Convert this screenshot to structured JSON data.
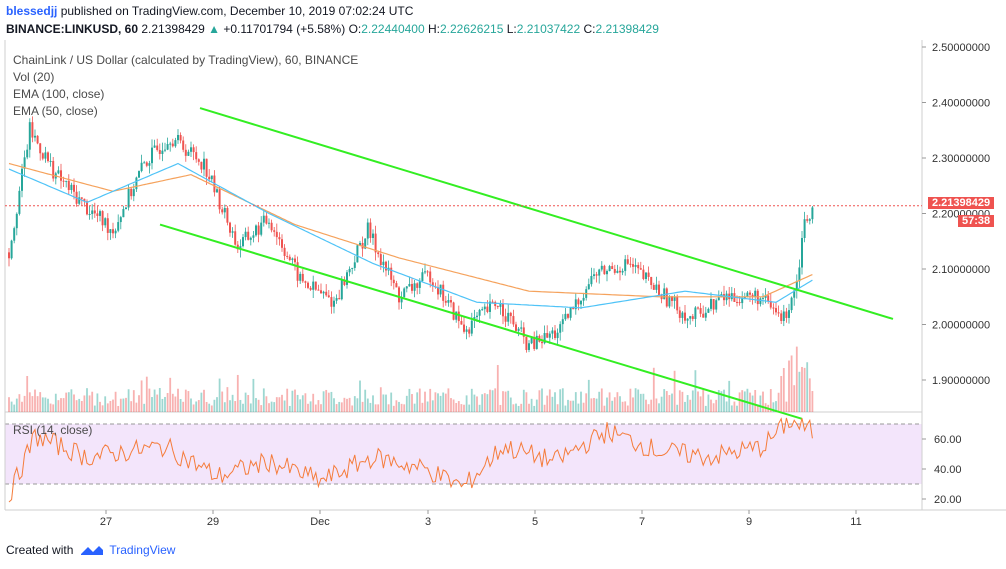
{
  "header": {
    "author": "blessedjj",
    "published": "published on TradingView.com, December 10, 2019 07:02:24 UTC",
    "symbol": "BINANCE:LINKUSD, 60",
    "last": "2.21398429",
    "change": "+0.11701794 (+5.58%)",
    "open_label": "O:",
    "open": "2.22440400",
    "high_label": "H:",
    "high": "2.22626215",
    "low_label": "L:",
    "low": "2.21037422",
    "close_label": "C:",
    "close": "2.21398429"
  },
  "legend": {
    "title": "ChainLink / US Dollar (calculated by TradingView), 60, BINANCE",
    "vol": "Vol (20)",
    "ema100": "EMA (100, close)",
    "ema50": "EMA (50, close)",
    "rsi": "RSI (14, close)"
  },
  "price_tag": {
    "price": "2.21398429",
    "countdown": "57:38"
  },
  "footer": {
    "created_with": "Created with",
    "brand": "TradingView"
  },
  "colors": {
    "up": "#26a69a",
    "down": "#ef5350",
    "channel": "#33ee22",
    "ema100": "#f5a25c",
    "ema50": "#4fc3f7",
    "rsi": "#f57c3b",
    "rsi_band": "#f3e5fb",
    "price_line": "#ef5350"
  },
  "chart_data": {
    "type": "candlestick",
    "title": "ChainLink / US Dollar (calculated by TradingView), 60, BINANCE",
    "y_ticks": [
      "2.50000000",
      "2.40000000",
      "2.30000000",
      "2.20000000",
      "2.10000000",
      "2.00000000",
      "1.90000000"
    ],
    "y_tick_values": [
      2.5,
      2.4,
      2.3,
      2.2,
      2.1,
      2.0,
      1.9
    ],
    "x_ticks": [
      "27",
      "29",
      "Dec",
      "3",
      "5",
      "7",
      "9",
      "11"
    ],
    "rsi_ticks": [
      "60.00",
      "40.00",
      "20.00"
    ],
    "rsi_tick_values": [
      60,
      40,
      20
    ],
    "rsi_band": [
      70,
      30
    ],
    "last_price": 2.21398429,
    "channel_lines": [
      {
        "name": "upper",
        "points": [
          [
            "Nov 28 12:00",
            2.39
          ],
          [
            "Dec 11 06:00",
            2.01
          ]
        ]
      },
      {
        "name": "lower",
        "points": [
          [
            "Nov 27 18:00",
            2.18
          ],
          [
            "Dec 9 20:00",
            1.83
          ]
        ]
      }
    ],
    "close_waypoints": [
      [
        0,
        2.13
      ],
      [
        8,
        2.35
      ],
      [
        18,
        2.27
      ],
      [
        30,
        2.21
      ],
      [
        40,
        2.17
      ],
      [
        52,
        2.29
      ],
      [
        62,
        2.34
      ],
      [
        75,
        2.29
      ],
      [
        88,
        2.14
      ],
      [
        100,
        2.19
      ],
      [
        112,
        2.08
      ],
      [
        125,
        2.04
      ],
      [
        138,
        2.17
      ],
      [
        150,
        2.05
      ],
      [
        162,
        2.09
      ],
      [
        175,
        1.99
      ],
      [
        188,
        2.04
      ],
      [
        200,
        1.96
      ],
      [
        212,
        1.99
      ],
      [
        225,
        2.09
      ],
      [
        238,
        2.11
      ],
      [
        250,
        2.06
      ],
      [
        262,
        2.01
      ],
      [
        275,
        2.05
      ],
      [
        288,
        2.05
      ],
      [
        298,
        2.01
      ],
      [
        303,
        2.08
      ],
      [
        306,
        2.19
      ],
      [
        309,
        2.21
      ]
    ],
    "ema100_waypoints": [
      [
        0,
        2.29
      ],
      [
        40,
        2.24
      ],
      [
        70,
        2.27
      ],
      [
        110,
        2.18
      ],
      [
        150,
        2.12
      ],
      [
        200,
        2.06
      ],
      [
        250,
        2.05
      ],
      [
        290,
        2.05
      ],
      [
        309,
        2.09
      ]
    ],
    "ema50_waypoints": [
      [
        0,
        2.28
      ],
      [
        30,
        2.22
      ],
      [
        65,
        2.29
      ],
      [
        100,
        2.2
      ],
      [
        140,
        2.11
      ],
      [
        180,
        2.04
      ],
      [
        220,
        2.03
      ],
      [
        260,
        2.06
      ],
      [
        295,
        2.04
      ],
      [
        309,
        2.08
      ]
    ],
    "rsi_waypoints": [
      [
        0,
        22
      ],
      [
        10,
        62
      ],
      [
        30,
        48
      ],
      [
        60,
        55
      ],
      [
        80,
        35
      ],
      [
        100,
        45
      ],
      [
        120,
        32
      ],
      [
        140,
        48
      ],
      [
        160,
        40
      ],
      [
        175,
        28
      ],
      [
        190,
        55
      ],
      [
        210,
        45
      ],
      [
        230,
        65
      ],
      [
        250,
        52
      ],
      [
        270,
        48
      ],
      [
        290,
        55
      ],
      [
        300,
        72
      ],
      [
        309,
        65
      ]
    ]
  }
}
